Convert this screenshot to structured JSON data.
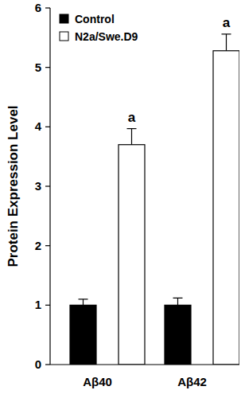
{
  "chart_data": {
    "type": "bar",
    "y_label": "Protein Expression Level",
    "categories": [
      "Aβ40",
      "Aβ42"
    ],
    "series": [
      {
        "name": "Control",
        "color": "#000000",
        "values": [
          1,
          1
        ],
        "errors": [
          0.1,
          0.12
        ]
      },
      {
        "name": "N2a/Swe.D9",
        "color": "#ffffff",
        "values": [
          3.7,
          5.28
        ],
        "errors": [
          0.27,
          0.28
        ],
        "annotations": [
          "a",
          "a"
        ]
      }
    ],
    "ylim": [
      0,
      6
    ],
    "yticks": [
      0,
      1,
      2,
      3,
      4,
      5,
      6
    ],
    "grid": false,
    "legend": "upper left"
  }
}
